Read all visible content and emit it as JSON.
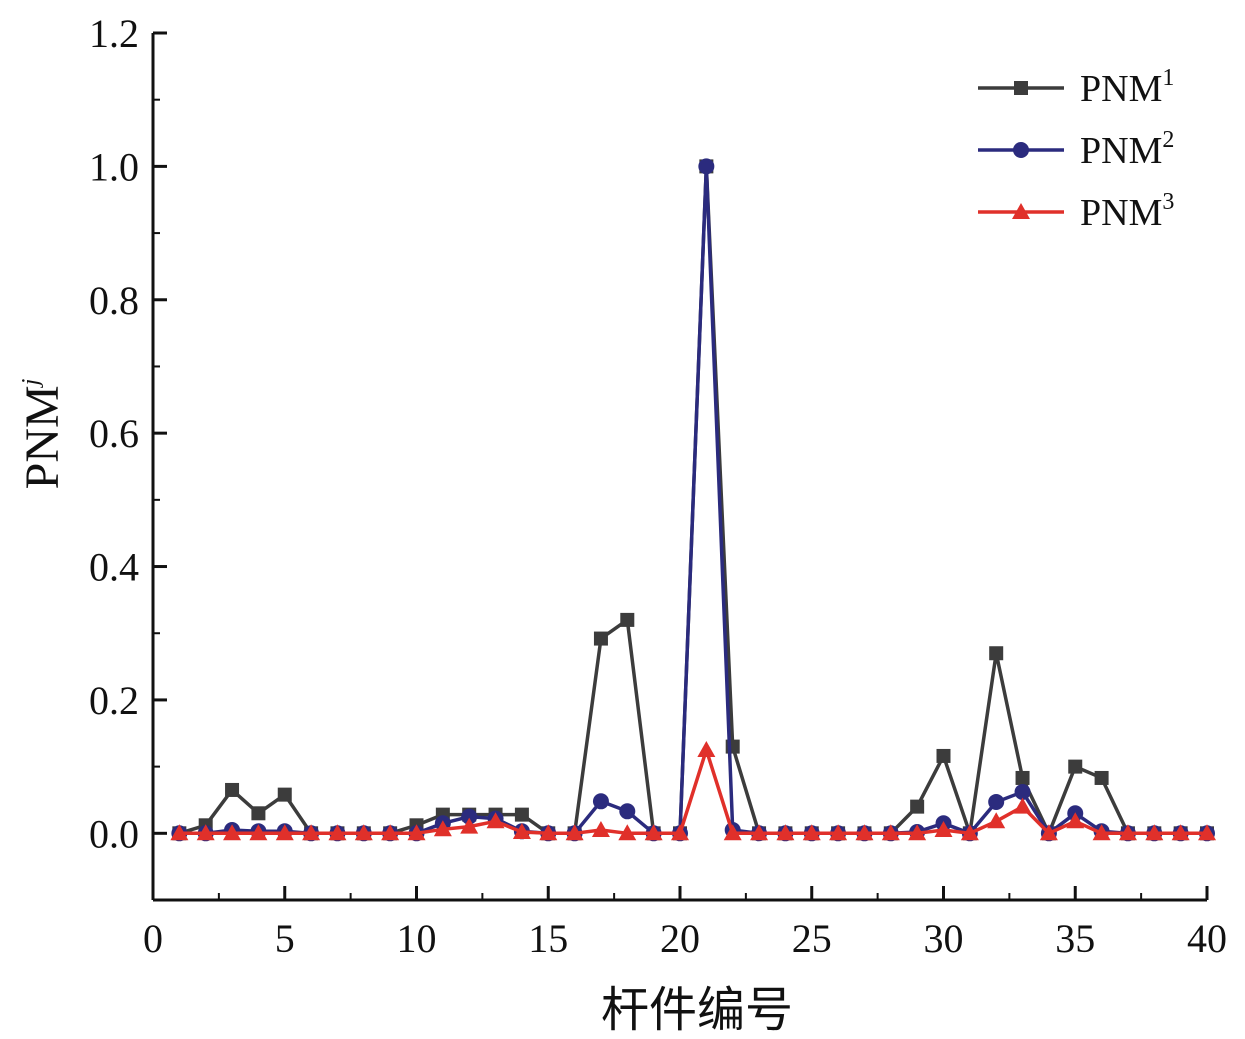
{
  "chart_data": {
    "type": "line",
    "xlabel": "杆件编号",
    "ylabel": {
      "main": "PNM",
      "sup": "j"
    },
    "xlim": [
      0,
      40
    ],
    "ylim": [
      -0.1,
      1.2
    ],
    "xticks": [
      "0",
      "5",
      "10",
      "15",
      "20",
      "25",
      "30",
      "35",
      "40"
    ],
    "yticks": [
      "0.0",
      "0.2",
      "0.4",
      "0.6",
      "0.8",
      "1.0",
      "1.2"
    ],
    "legend_position": "top-right",
    "x": [
      1,
      2,
      3,
      4,
      5,
      6,
      7,
      8,
      9,
      10,
      11,
      12,
      13,
      14,
      15,
      16,
      17,
      18,
      19,
      20,
      21,
      22,
      23,
      24,
      25,
      26,
      27,
      28,
      29,
      30,
      31,
      32,
      33,
      34,
      35,
      36,
      37,
      38,
      39,
      40
    ],
    "series": [
      {
        "name": "PNM",
        "sup": "1",
        "color": "#3c3c3c",
        "marker": "square",
        "values": [
          0,
          0.012,
          0.065,
          0.03,
          0.058,
          0,
          0,
          0,
          0,
          0.012,
          0.028,
          0.028,
          0.028,
          0.028,
          0,
          0,
          0.292,
          0.32,
          0,
          0,
          1.0,
          0.13,
          0,
          0,
          0,
          0,
          0,
          0,
          0.04,
          0.116,
          0,
          0.27,
          0.083,
          0,
          0.1,
          0.083,
          0,
          0,
          0,
          0
        ]
      },
      {
        "name": "PNM",
        "sup": "2",
        "color": "#2b2b7e",
        "marker": "circle",
        "values": [
          0,
          0,
          0.005,
          0.003,
          0.003,
          0,
          0,
          0,
          0,
          0,
          0.015,
          0.025,
          0.022,
          0.003,
          0,
          0,
          0.048,
          0.033,
          0,
          0,
          1.0,
          0.005,
          0,
          0,
          0,
          0,
          0,
          0,
          0.002,
          0.015,
          0,
          0.047,
          0.062,
          0,
          0.03,
          0.003,
          0,
          0,
          0,
          0
        ]
      },
      {
        "name": "PNM",
        "sup": "3",
        "color": "#e0302a",
        "marker": "triangle",
        "values": [
          0,
          0,
          0,
          0,
          0,
          0,
          0,
          0,
          0,
          0,
          0.006,
          0.01,
          0.018,
          0.002,
          0,
          0,
          0.005,
          0,
          0,
          0,
          0.125,
          0,
          0,
          0,
          0,
          0,
          0,
          0,
          0,
          0.005,
          0,
          0.018,
          0.04,
          0,
          0.018,
          0,
          0,
          0,
          0,
          0
        ]
      }
    ]
  }
}
